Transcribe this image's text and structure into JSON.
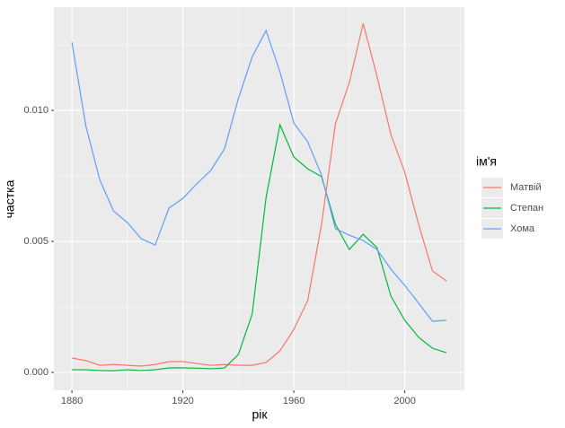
{
  "chart_data": {
    "type": "line",
    "x_label": "рік",
    "y_label": "частка",
    "x": [
      1880,
      1885,
      1890,
      1895,
      1900,
      1905,
      1910,
      1915,
      1920,
      1925,
      1930,
      1935,
      1940,
      1945,
      1950,
      1955,
      1960,
      1965,
      1970,
      1975,
      1980,
      1985,
      1990,
      1995,
      2000,
      2005,
      2010,
      2015
    ],
    "series": [
      {
        "name": "Матвій",
        "color": "#F8766D",
        "values": [
          0.00055,
          0.00045,
          0.00027,
          0.0003,
          0.00027,
          0.00024,
          0.0003,
          0.00041,
          0.00041,
          0.00034,
          0.00027,
          0.0003,
          0.00027,
          0.00027,
          0.00038,
          0.00082,
          0.00164,
          0.00274,
          0.00565,
          0.00949,
          0.01106,
          0.01332,
          0.0113,
          0.00908,
          0.00764,
          0.00565,
          0.00387,
          0.00349
        ]
      },
      {
        "name": "Степан",
        "color": "#00BA38",
        "values": [
          0.0001,
          0.0001,
          7e-05,
          6e-05,
          0.0001,
          7e-05,
          0.0001,
          0.00017,
          0.00017,
          0.00016,
          0.00014,
          0.00017,
          0.00068,
          0.00223,
          0.00668,
          0.00945,
          0.00822,
          0.00777,
          0.00747,
          0.00565,
          0.00469,
          0.00527,
          0.00476,
          0.00291,
          0.00199,
          0.00134,
          0.00092,
          0.00075
        ]
      },
      {
        "name": "Хома",
        "color": "#619CFF",
        "values": [
          0.0126,
          0.00942,
          0.00736,
          0.00616,
          0.00572,
          0.0051,
          0.00486,
          0.00627,
          0.00664,
          0.0072,
          0.0077,
          0.00853,
          0.01045,
          0.01205,
          0.01305,
          0.01147,
          0.00952,
          0.0088,
          0.00753,
          0.00548,
          0.00524,
          0.00503,
          0.00469,
          0.00394,
          0.00332,
          0.00264,
          0.00195,
          0.00199
        ]
      }
    ],
    "legend_title": "ім'я",
    "legend": "right",
    "xlim": [
      1873.5,
      2021.5
    ],
    "xticks": [
      1880,
      1920,
      1960,
      2000
    ],
    "xminor": [
      1900,
      1940,
      1980,
      2020
    ],
    "ylim": [
      -0.000685,
      0.01394
    ],
    "yticks": [
      {
        "value": 0,
        "label": "0.000"
      },
      {
        "value": 0.005,
        "label": "0.005"
      },
      {
        "value": 0.01,
        "label": "0.010"
      }
    ],
    "yminor": [
      0.0025,
      0.0075,
      0.0125
    ],
    "grid": true
  }
}
